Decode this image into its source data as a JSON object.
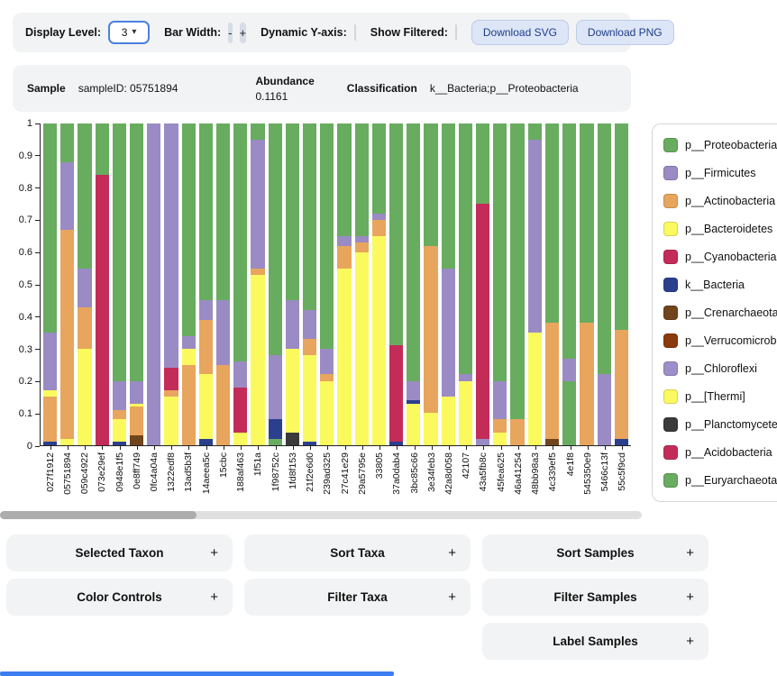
{
  "toolbar": {
    "display_level_label": "Display Level:",
    "display_level_value": "3",
    "bar_width_label": "Bar Width:",
    "minus_label": "-",
    "plus_label": "+",
    "dynamic_y_label": "Dynamic Y-axis:",
    "show_filtered_label": "Show Filtered:",
    "download_svg_label": "Download SVG",
    "download_png_label": "Download PNG"
  },
  "infobar": {
    "sample_label": "Sample",
    "sample_value": "sampleID: 05751894",
    "abundance_label": "Abundance",
    "abundance_value": "0.1161",
    "classification_label": "Classification",
    "classification_value": "k__Bacteria;p__Proteobacteria"
  },
  "panels": {
    "plus": "+",
    "selected_taxon": "Selected Taxon",
    "sort_taxa": "Sort Taxa",
    "sort_samples": "Sort Samples",
    "color_controls": "Color Controls",
    "filter_taxa": "Filter Taxa",
    "filter_samples": "Filter Samples",
    "label_samples": "Label Samples"
  },
  "chart_data": {
    "type": "bar",
    "stacked": true,
    "title": "",
    "xlabel": "",
    "ylabel": "",
    "ylim": [
      0,
      1
    ],
    "grid": false,
    "legend_position": "right",
    "yticks": [
      1,
      0.9,
      0.8,
      0.7,
      0.6,
      0.5,
      0.4,
      0.3,
      0.2,
      0.1,
      0
    ],
    "palette": {
      "proteobacteria": "#68ac5f",
      "firmicutes": "#9a8bc4",
      "actinobacteria": "#e8a55d",
      "bacteroidetes": "#fafa5f",
      "cyanobacteria": "#c32c59",
      "k_bacteria": "#2c3f8f",
      "crenarchaeota": "#70441c",
      "verrucomicrobia": "#8a3a0b",
      "chloroflexi": "#9d8fc9",
      "thermi": "#fafa5f",
      "planctomycetes": "#3a3a3a",
      "acidobacteria": "#c32c59",
      "euryarchaeota": "#68ac5f"
    },
    "legend": [
      {
        "label": "p__Proteobacteria",
        "key": "proteobacteria"
      },
      {
        "label": "p__Firmicutes",
        "key": "firmicutes"
      },
      {
        "label": "p__Actinobacteria",
        "key": "actinobacteria"
      },
      {
        "label": "p__Bacteroidetes",
        "key": "bacteroidetes"
      },
      {
        "label": "p__Cyanobacteria",
        "key": "cyanobacteria"
      },
      {
        "label": "k__Bacteria",
        "key": "k_bacteria"
      },
      {
        "label": "p__Crenarchaeota",
        "key": "crenarchaeota"
      },
      {
        "label": "p__Verrucomicrobia",
        "key": "verrucomicrobia"
      },
      {
        "label": "p__Chloroflexi",
        "key": "chloroflexi"
      },
      {
        "label": "p__[Thermi]",
        "key": "thermi"
      },
      {
        "label": "p__Planctomycetes",
        "key": "planctomycetes"
      },
      {
        "label": "p__Acidobacteria",
        "key": "acidobacteria"
      },
      {
        "label": "p__Euryarchaeota",
        "key": "euryarchaeota"
      }
    ],
    "samples": [
      {
        "id": "027f1912",
        "segments": [
          [
            "k_bacteria",
            0.01
          ],
          [
            "actinobacteria",
            0.14
          ],
          [
            "bacteroidetes",
            0.02
          ],
          [
            "firmicutes",
            0.18
          ],
          [
            "proteobacteria",
            0.65
          ]
        ]
      },
      {
        "id": "05751894",
        "segments": [
          [
            "bacteroidetes",
            0.02
          ],
          [
            "actinobacteria",
            0.65
          ],
          [
            "firmicutes",
            0.21
          ],
          [
            "proteobacteria",
            0.12
          ]
        ]
      },
      {
        "id": "059c4922",
        "segments": [
          [
            "bacteroidetes",
            0.3
          ],
          [
            "actinobacteria",
            0.13
          ],
          [
            "firmicutes",
            0.12
          ],
          [
            "proteobacteria",
            0.45
          ]
        ]
      },
      {
        "id": "073e29ef",
        "segments": [
          [
            "cyanobacteria",
            0.84
          ],
          [
            "proteobacteria",
            0.16
          ]
        ]
      },
      {
        "id": "0948e1f5",
        "segments": [
          [
            "k_bacteria",
            0.01
          ],
          [
            "bacteroidetes",
            0.07
          ],
          [
            "actinobacteria",
            0.03
          ],
          [
            "firmicutes",
            0.09
          ],
          [
            "proteobacteria",
            0.8
          ]
        ]
      },
      {
        "id": "0e8ff749",
        "segments": [
          [
            "crenarchaeota",
            0.03
          ],
          [
            "actinobacteria",
            0.09
          ],
          [
            "bacteroidetes",
            0.01
          ],
          [
            "firmicutes",
            0.07
          ],
          [
            "proteobacteria",
            0.8
          ]
        ]
      },
      {
        "id": "0fc4a04a",
        "segments": [
          [
            "firmicutes",
            1.0
          ]
        ]
      },
      {
        "id": "1322edf8",
        "segments": [
          [
            "bacteroidetes",
            0.15
          ],
          [
            "actinobacteria",
            0.02
          ],
          [
            "cyanobacteria",
            0.07
          ],
          [
            "firmicutes",
            0.76
          ]
        ]
      },
      {
        "id": "13ad5b3f",
        "segments": [
          [
            "actinobacteria",
            0.25
          ],
          [
            "bacteroidetes",
            0.05
          ],
          [
            "firmicutes",
            0.04
          ],
          [
            "proteobacteria",
            0.66
          ]
        ]
      },
      {
        "id": "14aeea5c",
        "segments": [
          [
            "k_bacteria",
            0.02
          ],
          [
            "bacteroidetes",
            0.2
          ],
          [
            "actinobacteria",
            0.17
          ],
          [
            "firmicutes",
            0.06
          ],
          [
            "proteobacteria",
            0.55
          ]
        ]
      },
      {
        "id": "15cbc",
        "segments": [
          [
            "actinobacteria",
            0.25
          ],
          [
            "firmicutes",
            0.2
          ],
          [
            "proteobacteria",
            0.55
          ]
        ]
      },
      {
        "id": "188af463",
        "segments": [
          [
            "bacteroidetes",
            0.04
          ],
          [
            "cyanobacteria",
            0.14
          ],
          [
            "firmicutes",
            0.08
          ],
          [
            "proteobacteria",
            0.74
          ]
        ]
      },
      {
        "id": "1f51a",
        "segments": [
          [
            "bacteroidetes",
            0.53
          ],
          [
            "actinobacteria",
            0.02
          ],
          [
            "firmicutes",
            0.4
          ],
          [
            "proteobacteria",
            0.05
          ]
        ]
      },
      {
        "id": "1f98752c",
        "segments": [
          [
            "proteobacteria",
            0.02
          ],
          [
            "k_bacteria",
            0.06
          ],
          [
            "firmicutes",
            0.2
          ],
          [
            "proteobacteria",
            0.72
          ]
        ]
      },
      {
        "id": "1fd8f153",
        "segments": [
          [
            "planctomycetes",
            0.04
          ],
          [
            "bacteroidetes",
            0.26
          ],
          [
            "firmicutes",
            0.15
          ],
          [
            "proteobacteria",
            0.55
          ]
        ]
      },
      {
        "id": "21f2e6d0",
        "segments": [
          [
            "k_bacteria",
            0.01
          ],
          [
            "bacteroidetes",
            0.27
          ],
          [
            "actinobacteria",
            0.05
          ],
          [
            "firmicutes",
            0.09
          ],
          [
            "proteobacteria",
            0.58
          ]
        ]
      },
      {
        "id": "239ad325",
        "segments": [
          [
            "bacteroidetes",
            0.2
          ],
          [
            "actinobacteria",
            0.02
          ],
          [
            "firmicutes",
            0.08
          ],
          [
            "proteobacteria",
            0.7
          ]
        ]
      },
      {
        "id": "27c41e29",
        "segments": [
          [
            "bacteroidetes",
            0.55
          ],
          [
            "actinobacteria",
            0.07
          ],
          [
            "firmicutes",
            0.03
          ],
          [
            "proteobacteria",
            0.35
          ]
        ]
      },
      {
        "id": "29a5795e",
        "segments": [
          [
            "bacteroidetes",
            0.6
          ],
          [
            "actinobacteria",
            0.03
          ],
          [
            "firmicutes",
            0.02
          ],
          [
            "proteobacteria",
            0.35
          ]
        ]
      },
      {
        "id": "33805",
        "segments": [
          [
            "bacteroidetes",
            0.65
          ],
          [
            "actinobacteria",
            0.05
          ],
          [
            "firmicutes",
            0.02
          ],
          [
            "proteobacteria",
            0.28
          ]
        ]
      },
      {
        "id": "37a0dab4",
        "segments": [
          [
            "k_bacteria",
            0.01
          ],
          [
            "cyanobacteria",
            0.3
          ],
          [
            "proteobacteria",
            0.69
          ]
        ]
      },
      {
        "id": "3bc85c66",
        "segments": [
          [
            "bacteroidetes",
            0.13
          ],
          [
            "k_bacteria",
            0.01
          ],
          [
            "firmicutes",
            0.06
          ],
          [
            "proteobacteria",
            0.8
          ]
        ]
      },
      {
        "id": "3e34feb3",
        "segments": [
          [
            "bacteroidetes",
            0.1
          ],
          [
            "actinobacteria",
            0.52
          ],
          [
            "proteobacteria",
            0.38
          ]
        ]
      },
      {
        "id": "42a8d058",
        "segments": [
          [
            "bacteroidetes",
            0.15
          ],
          [
            "firmicutes",
            0.4
          ],
          [
            "proteobacteria",
            0.45
          ]
        ]
      },
      {
        "id": "42107",
        "segments": [
          [
            "bacteroidetes",
            0.2
          ],
          [
            "firmicutes",
            0.02
          ],
          [
            "proteobacteria",
            0.78
          ]
        ]
      },
      {
        "id": "43a5fb8c",
        "segments": [
          [
            "firmicutes",
            0.02
          ],
          [
            "cyanobacteria",
            0.73
          ],
          [
            "proteobacteria",
            0.25
          ]
        ]
      },
      {
        "id": "45fea625",
        "segments": [
          [
            "bacteroidetes",
            0.04
          ],
          [
            "actinobacteria",
            0.04
          ],
          [
            "firmicutes",
            0.12
          ],
          [
            "proteobacteria",
            0.8
          ]
        ]
      },
      {
        "id": "46a41254",
        "segments": [
          [
            "actinobacteria",
            0.08
          ],
          [
            "proteobacteria",
            0.92
          ]
        ]
      },
      {
        "id": "48bb98a3",
        "segments": [
          [
            "bacteroidetes",
            0.35
          ],
          [
            "firmicutes",
            0.6
          ],
          [
            "proteobacteria",
            0.05
          ]
        ]
      },
      {
        "id": "4c339ef5",
        "segments": [
          [
            "crenarchaeota",
            0.02
          ],
          [
            "actinobacteria",
            0.36
          ],
          [
            "proteobacteria",
            0.62
          ]
        ]
      },
      {
        "id": "4e1f8",
        "segments": [
          [
            "proteobacteria",
            0.2
          ],
          [
            "firmicutes",
            0.07
          ],
          [
            "proteobacteria",
            0.73
          ]
        ]
      },
      {
        "id": "545350e9",
        "segments": [
          [
            "actinobacteria",
            0.38
          ],
          [
            "proteobacteria",
            0.62
          ]
        ]
      },
      {
        "id": "5466c13f",
        "segments": [
          [
            "firmicutes",
            0.22
          ],
          [
            "proteobacteria",
            0.78
          ]
        ]
      },
      {
        "id": "55c5f9cd",
        "segments": [
          [
            "k_bacteria",
            0.02
          ],
          [
            "actinobacteria",
            0.34
          ],
          [
            "proteobacteria",
            0.64
          ]
        ]
      }
    ]
  }
}
